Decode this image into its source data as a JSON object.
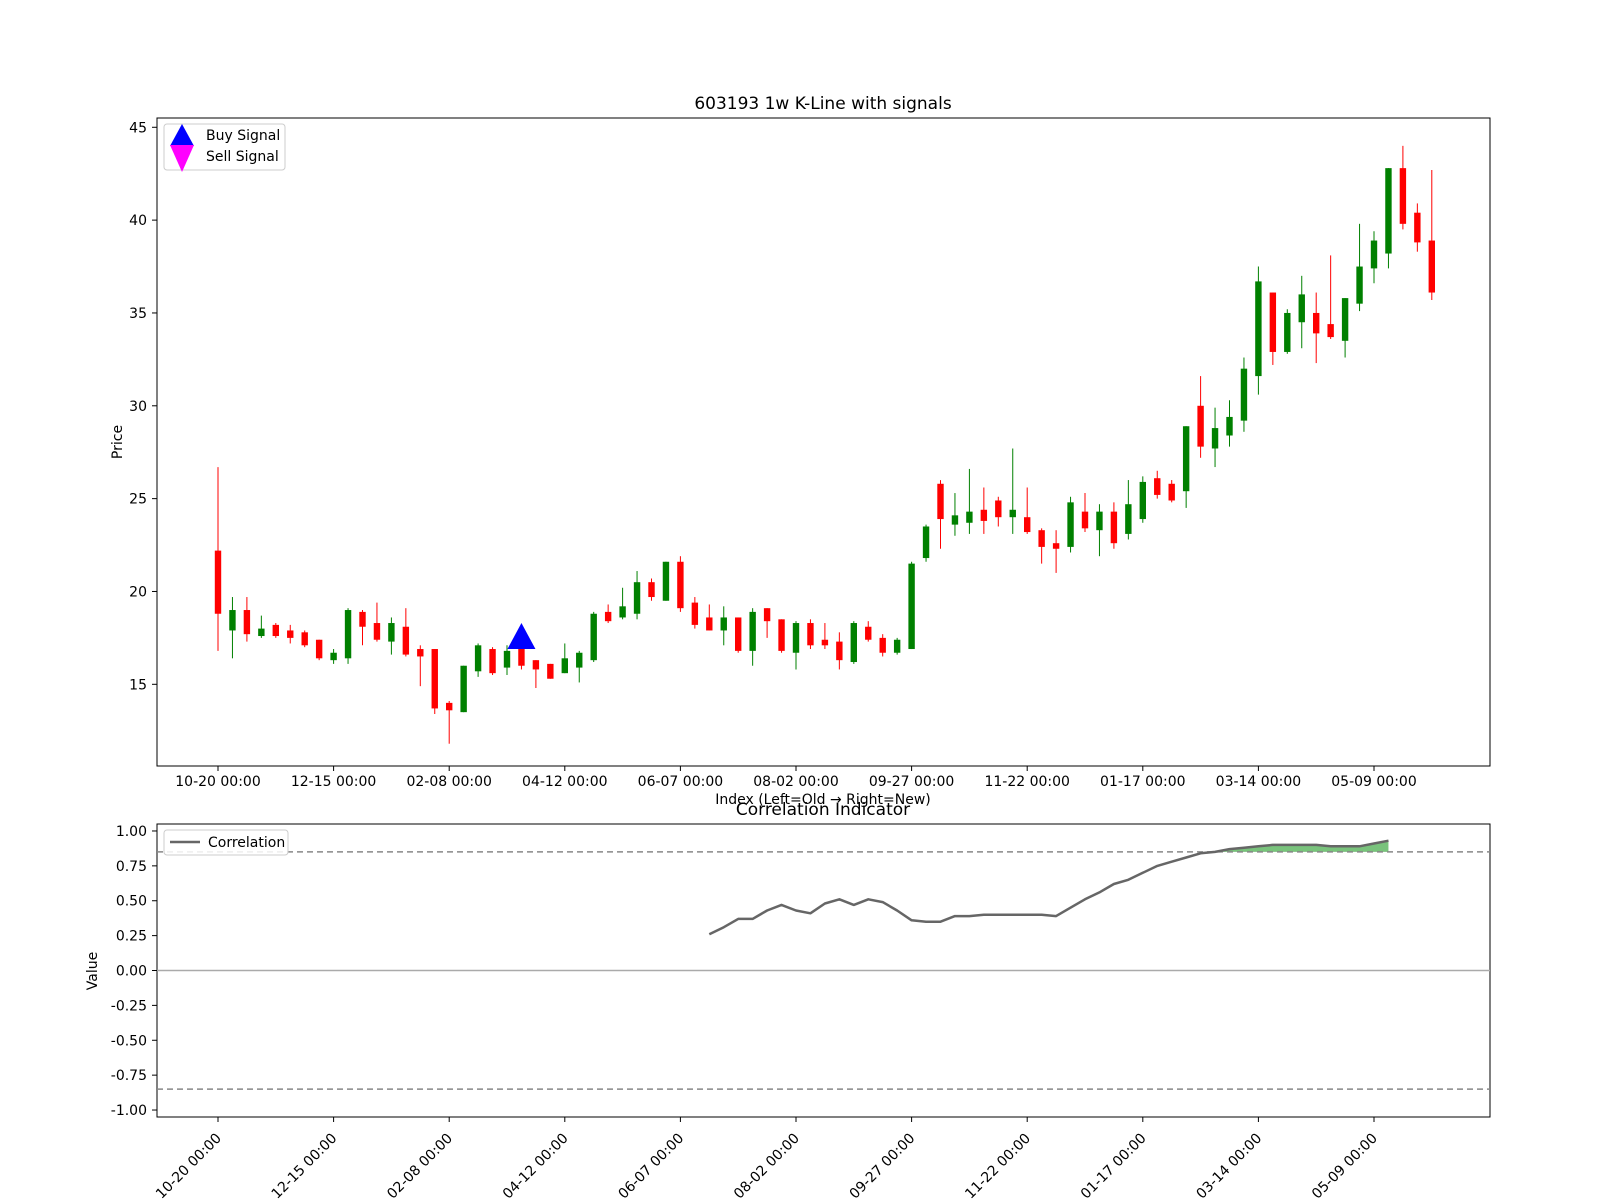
{
  "chart_data": [
    {
      "type": "candlestick",
      "title": "603193 1w K-Line with signals",
      "xlabel": "Index (Left=Old → Right=New)",
      "ylabel": "Price",
      "ylim": [
        10.6,
        45.5
      ],
      "y_ticks": [
        15,
        20,
        25,
        30,
        35,
        40,
        45
      ],
      "x_ticks": [
        {
          "index": 0,
          "label": "10-20 00:00"
        },
        {
          "index": 8,
          "label": "12-15 00:00"
        },
        {
          "index": 16,
          "label": "02-08 00:00"
        },
        {
          "index": 24,
          "label": "04-12 00:00"
        },
        {
          "index": 32,
          "label": "06-07 00:00"
        },
        {
          "index": 40,
          "label": "08-02 00:00"
        },
        {
          "index": 48,
          "label": "09-27 00:00"
        },
        {
          "index": 56,
          "label": "11-22 00:00"
        },
        {
          "index": 64,
          "label": "01-17 00:00"
        },
        {
          "index": 72,
          "label": "03-14 00:00"
        },
        {
          "index": 80,
          "label": "05-09 00:00"
        }
      ],
      "legend": {
        "position": "top-left",
        "entries": [
          "Buy Signal",
          "Sell Signal"
        ]
      },
      "up_color": "#008000",
      "down_color": "#ff0000",
      "buy_color": "#0000ff",
      "sell_color": "#ff00ff",
      "buy_signals": [
        {
          "index": 21,
          "price": 17.6
        }
      ],
      "sell_signals": [],
      "candles": [
        [
          22.2,
          18.8,
          26.7,
          16.8
        ],
        [
          17.9,
          19.0,
          19.7,
          16.4
        ],
        [
          19.0,
          17.7,
          19.7,
          17.3
        ],
        [
          17.6,
          18.0,
          18.7,
          17.5
        ],
        [
          18.2,
          17.6,
          18.3,
          17.5
        ],
        [
          17.9,
          17.5,
          18.2,
          17.2
        ],
        [
          17.8,
          17.1,
          17.9,
          17.0
        ],
        [
          17.4,
          16.4,
          17.4,
          16.3
        ],
        [
          16.3,
          16.7,
          16.9,
          16.1
        ],
        [
          16.4,
          19.0,
          19.1,
          16.1
        ],
        [
          18.9,
          18.1,
          19.0,
          17.1
        ],
        [
          18.3,
          17.4,
          19.4,
          17.3
        ],
        [
          17.3,
          18.3,
          18.6,
          16.6
        ],
        [
          18.1,
          16.6,
          19.1,
          16.5
        ],
        [
          16.9,
          16.5,
          17.1,
          14.9
        ],
        [
          16.9,
          13.7,
          16.9,
          13.4
        ],
        [
          14.0,
          13.6,
          14.1,
          11.8
        ],
        [
          13.5,
          16.0,
          16.0,
          13.5
        ],
        [
          15.7,
          17.1,
          17.2,
          15.4
        ],
        [
          16.9,
          15.6,
          17.0,
          15.5
        ],
        [
          15.9,
          16.8,
          17.1,
          15.5
        ],
        [
          17.0,
          16.0,
          17.1,
          15.8
        ],
        [
          16.3,
          15.8,
          16.3,
          14.8
        ],
        [
          16.1,
          15.3,
          16.1,
          15.3
        ],
        [
          15.6,
          16.4,
          17.2,
          15.6
        ],
        [
          15.9,
          16.7,
          16.8,
          15.1
        ],
        [
          16.3,
          18.8,
          18.9,
          16.2
        ],
        [
          18.9,
          18.4,
          19.3,
          18.3
        ],
        [
          18.6,
          19.2,
          20.2,
          18.5
        ],
        [
          18.8,
          20.5,
          21.1,
          18.5
        ],
        [
          20.5,
          19.7,
          20.7,
          19.5
        ],
        [
          19.5,
          21.6,
          21.6,
          19.5
        ],
        [
          21.6,
          19.1,
          21.9,
          18.9
        ],
        [
          19.4,
          18.2,
          19.7,
          18.0
        ],
        [
          18.6,
          17.9,
          19.3,
          17.9
        ],
        [
          17.9,
          18.6,
          19.2,
          17.1
        ],
        [
          18.6,
          16.8,
          18.6,
          16.7
        ],
        [
          16.8,
          18.9,
          19.1,
          16.0
        ],
        [
          19.1,
          18.4,
          19.1,
          17.5
        ],
        [
          18.5,
          16.8,
          18.5,
          16.7
        ],
        [
          16.7,
          18.3,
          18.4,
          15.8
        ],
        [
          18.3,
          17.1,
          18.5,
          16.9
        ],
        [
          17.4,
          17.1,
          18.3,
          16.9
        ],
        [
          17.3,
          16.3,
          17.8,
          15.8
        ],
        [
          16.2,
          18.3,
          18.4,
          16.1
        ],
        [
          18.1,
          17.4,
          18.4,
          17.3
        ],
        [
          17.5,
          16.7,
          17.7,
          16.5
        ],
        [
          16.7,
          17.4,
          17.5,
          16.6
        ],
        [
          16.9,
          21.5,
          21.6,
          16.9
        ],
        [
          21.8,
          23.5,
          23.6,
          21.6
        ],
        [
          25.8,
          23.9,
          26.0,
          22.3
        ],
        [
          23.6,
          24.1,
          25.3,
          23.0
        ],
        [
          23.7,
          24.3,
          26.6,
          23.1
        ],
        [
          24.4,
          23.8,
          25.6,
          23.1
        ],
        [
          24.9,
          24.0,
          25.1,
          23.5
        ],
        [
          24.0,
          24.4,
          27.7,
          23.1
        ],
        [
          24.0,
          23.2,
          25.6,
          23.1
        ],
        [
          23.3,
          22.4,
          23.4,
          21.5
        ],
        [
          22.6,
          22.3,
          23.3,
          21.0
        ],
        [
          22.4,
          24.8,
          25.1,
          22.1
        ],
        [
          24.3,
          23.4,
          25.3,
          23.2
        ],
        [
          23.3,
          24.3,
          24.7,
          21.9
        ],
        [
          24.3,
          22.6,
          24.8,
          22.3
        ],
        [
          23.1,
          24.7,
          26.0,
          22.8
        ],
        [
          23.9,
          25.9,
          26.2,
          23.7
        ],
        [
          26.1,
          25.2,
          26.5,
          25.0
        ],
        [
          25.8,
          24.9,
          26.0,
          24.8
        ],
        [
          25.4,
          28.9,
          28.9,
          24.5
        ],
        [
          30.0,
          27.8,
          31.6,
          27.2
        ],
        [
          27.7,
          28.8,
          29.9,
          26.7
        ],
        [
          28.4,
          29.4,
          30.3,
          27.8
        ],
        [
          29.2,
          32.0,
          32.6,
          28.6
        ],
        [
          31.6,
          36.7,
          37.5,
          30.6
        ],
        [
          36.1,
          32.9,
          36.1,
          32.2
        ],
        [
          32.9,
          35.0,
          35.2,
          32.8
        ],
        [
          34.5,
          36.0,
          37.0,
          33.1
        ],
        [
          35.0,
          33.9,
          36.1,
          32.3
        ],
        [
          34.4,
          33.7,
          38.1,
          33.6
        ],
        [
          33.5,
          35.8,
          35.8,
          32.6
        ],
        [
          35.5,
          37.5,
          39.8,
          35.1
        ],
        [
          37.4,
          38.9,
          39.4,
          36.6
        ],
        [
          38.2,
          42.8,
          42.8,
          37.4
        ],
        [
          42.8,
          39.8,
          44.0,
          39.5
        ],
        [
          40.4,
          38.8,
          40.9,
          38.3
        ],
        [
          38.9,
          36.1,
          42.7,
          35.7
        ]
      ]
    },
    {
      "type": "line",
      "title": "Correlation Indicator",
      "xlabel": "",
      "ylabel": "Value",
      "ylim": [
        -1.05,
        1.05
      ],
      "y_ticks": [
        "1.00",
        "0.75",
        "0.50",
        "0.25",
        "0.00",
        "-0.25",
        "-0.50",
        "-0.75",
        "-1.00"
      ],
      "x_ticks": [
        {
          "index": 0,
          "label": "10-20 00:00"
        },
        {
          "index": 8,
          "label": "12-15 00:00"
        },
        {
          "index": 16,
          "label": "02-08 00:00"
        },
        {
          "index": 24,
          "label": "04-12 00:00"
        },
        {
          "index": 32,
          "label": "06-07 00:00"
        },
        {
          "index": 40,
          "label": "08-02 00:00"
        },
        {
          "index": 48,
          "label": "09-27 00:00"
        },
        {
          "index": 56,
          "label": "11-22 00:00"
        },
        {
          "index": 64,
          "label": "01-17 00:00"
        },
        {
          "index": 72,
          "label": "03-14 00:00"
        },
        {
          "index": 80,
          "label": "05-09 00:00"
        }
      ],
      "thresholds": [
        0.85,
        -0.85
      ],
      "zero_line": 0,
      "legend": {
        "position": "top-left",
        "entries": [
          "Correlation"
        ]
      },
      "line_color": "#666666",
      "fill_color": "#4caf50",
      "series": [
        {
          "name": "Correlation",
          "start_index": 34,
          "values": [
            0.26,
            0.31,
            0.37,
            0.37,
            0.43,
            0.47,
            0.43,
            0.41,
            0.48,
            0.51,
            0.47,
            0.51,
            0.49,
            0.43,
            0.36,
            0.35,
            0.35,
            0.39,
            0.39,
            0.4,
            0.4,
            0.4,
            0.4,
            0.4,
            0.39,
            0.45,
            0.51,
            0.56,
            0.62,
            0.65,
            0.7,
            0.75,
            0.78,
            0.81,
            0.84,
            0.85,
            0.87,
            0.88,
            0.89,
            0.9,
            0.9,
            0.9,
            0.9,
            0.89,
            0.89,
            0.89,
            0.91,
            0.93
          ]
        }
      ]
    }
  ]
}
